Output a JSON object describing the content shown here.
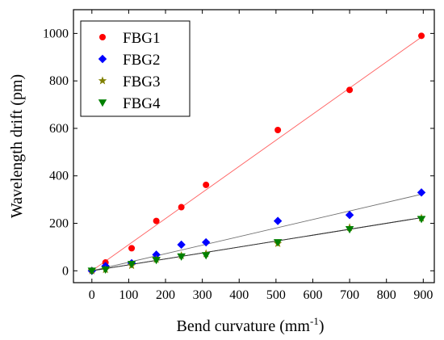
{
  "chart_data": {
    "type": "scatter",
    "title": "",
    "xlabel": "Bend curvature (mm",
    "xlabel_sup": "-1",
    "xlabel_suffix": ")",
    "ylabel": "Wavelength drift (pm)",
    "xlim": [
      -50,
      930
    ],
    "ylim": [
      -50,
      1100
    ],
    "xticks": [
      0,
      100,
      200,
      300,
      400,
      500,
      600,
      700,
      800,
      900
    ],
    "yticks": [
      0,
      200,
      400,
      600,
      800,
      1000
    ],
    "grid": false,
    "legend": "top-left",
    "x": [
      0,
      37,
      108,
      175,
      243,
      310,
      505,
      700,
      895
    ],
    "series": [
      {
        "name": "FBG1",
        "marker": "circle",
        "color": "#ff0000",
        "fit_color": "#ff6060",
        "values": [
          0,
          35,
          95,
          210,
          268,
          362,
          593,
          762,
          990
        ],
        "fit": [
          0,
          1.1
        ]
      },
      {
        "name": "FBG2",
        "marker": "diamond",
        "color": "#0000ff",
        "fit_color": "#707070",
        "values": [
          0,
          20,
          32,
          68,
          110,
          120,
          210,
          235,
          330
        ],
        "fit": [
          0,
          0.36
        ]
      },
      {
        "name": "FBG3",
        "marker": "star",
        "color": "#808000",
        "fit_color": "#303030",
        "values": [
          0,
          5,
          22,
          48,
          64,
          72,
          115,
          182,
          222
        ],
        "fit": [
          0,
          0.25
        ]
      },
      {
        "name": "FBG4",
        "marker": "triangle-down",
        "color": "#008000",
        "fit_color": "#303030",
        "values": [
          0,
          5,
          28,
          45,
          60,
          65,
          120,
          175,
          218
        ],
        "fit": [
          0,
          0.25
        ]
      }
    ]
  }
}
